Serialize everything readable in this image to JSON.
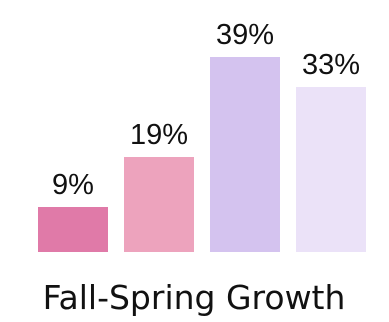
{
  "chart_data": {
    "type": "bar",
    "categories": [
      "",
      "",
      "",
      ""
    ],
    "values": [
      9,
      19,
      39,
      33
    ],
    "labels": [
      "9%",
      "19%",
      "39%",
      "33%"
    ],
    "colors": [
      "#e07aa8",
      "#eda3bd",
      "#d4c3ef",
      "#ebe2f8"
    ],
    "title": "Fall-Spring Growth",
    "xlabel": "",
    "ylabel": "",
    "ylim": [
      0,
      40
    ],
    "grid": false,
    "legend": "none"
  }
}
